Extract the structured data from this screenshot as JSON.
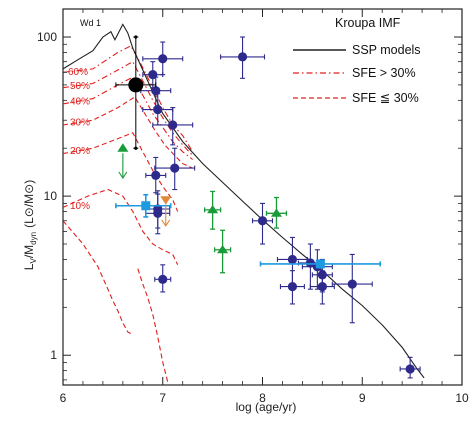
{
  "chart_data": {
    "type": "scatter",
    "xlabel": "log (age/yr)",
    "ylabel": "L_V/M_dyn (L_⊙/M_⊙)",
    "ylabel_parts": {
      "main": "L",
      "sub1": "V",
      "mid": "/M",
      "sub2": "dyn",
      "units": "(L⊙/M⊙)"
    },
    "xlim": [
      6,
      10
    ],
    "ylim": [
      0.65,
      150
    ],
    "yscale": "log",
    "x_ticks": [
      "6",
      "7",
      "8",
      "9",
      "10"
    ],
    "x_tick_values": [
      6,
      7,
      8,
      9,
      10
    ],
    "y_ticks": [
      "1",
      "10",
      "100"
    ],
    "y_tick_values": [
      1,
      10,
      100
    ],
    "legend": {
      "title": "Kroupa IMF",
      "entries": [
        {
          "label": "SSP models",
          "style": "solid",
          "color": "#222222"
        },
        {
          "label": "SFE > 30%",
          "style": "dashdot",
          "color": "#e0201e"
        },
        {
          "label": "SFE ≦ 30%",
          "style": "dashed",
          "color": "#e0201e"
        }
      ],
      "position": "top-right"
    },
    "annotations": {
      "object_label": "Wd 1"
    },
    "sfe_labels": [
      {
        "text": "60%",
        "x": 6.05,
        "y": 61
      },
      {
        "text": "50%",
        "x": 6.07,
        "y": 50
      },
      {
        "text": "40%",
        "x": 6.07,
        "y": 40
      },
      {
        "text": "30%",
        "x": 6.07,
        "y": 29.5
      },
      {
        "text": "20%",
        "x": 6.07,
        "y": 19.5
      },
      {
        "text": "10%",
        "x": 6.07,
        "y": 8.8
      }
    ],
    "ssp_curve": {
      "name": "SSP models",
      "points": [
        [
          6.0,
          63
        ],
        [
          6.15,
          72
        ],
        [
          6.3,
          82
        ],
        [
          6.4,
          100
        ],
        [
          6.48,
          108
        ],
        [
          6.52,
          96
        ],
        [
          6.6,
          120
        ],
        [
          6.65,
          106
        ],
        [
          6.7,
          85
        ],
        [
          6.8,
          62
        ],
        [
          6.9,
          45
        ],
        [
          7.0,
          33
        ],
        [
          7.1,
          27
        ],
        [
          7.2,
          22
        ],
        [
          7.4,
          16
        ],
        [
          7.6,
          12.2
        ],
        [
          7.8,
          9.3
        ],
        [
          8.0,
          7.1
        ],
        [
          8.2,
          5.5
        ],
        [
          8.4,
          4.3
        ],
        [
          8.6,
          3.4
        ],
        [
          8.8,
          2.6
        ],
        [
          9.0,
          2.05
        ],
        [
          9.2,
          1.55
        ],
        [
          9.4,
          1.12
        ],
        [
          9.55,
          0.82
        ],
        [
          9.62,
          0.72
        ]
      ]
    },
    "sfe_curves": [
      {
        "name": "SFE 60%",
        "style": "dashdot",
        "points": [
          [
            6.0,
            60
          ],
          [
            6.3,
            63
          ],
          [
            6.55,
            80
          ],
          [
            6.68,
            88
          ],
          [
            6.78,
            68
          ],
          [
            6.9,
            48
          ],
          [
            7.0,
            36
          ],
          [
            7.1,
            28
          ],
          [
            7.2,
            24
          ],
          [
            7.3,
            19
          ]
        ]
      },
      {
        "name": "SFE 50%",
        "style": "dashdot",
        "points": [
          [
            6.0,
            48
          ],
          [
            6.3,
            51
          ],
          [
            6.55,
            62
          ],
          [
            6.7,
            70
          ],
          [
            6.8,
            53
          ],
          [
            6.9,
            40
          ],
          [
            7.0,
            31
          ],
          [
            7.1,
            25
          ],
          [
            7.2,
            21
          ],
          [
            7.3,
            18
          ]
        ]
      },
      {
        "name": "SFE 40%",
        "style": "dashdot",
        "points": [
          [
            6.0,
            38
          ],
          [
            6.3,
            41
          ],
          [
            6.55,
            50
          ],
          [
            6.7,
            56
          ],
          [
            6.8,
            43
          ],
          [
            6.9,
            33
          ],
          [
            7.0,
            27
          ],
          [
            7.1,
            22
          ],
          [
            7.2,
            19
          ],
          [
            7.3,
            17
          ]
        ]
      },
      {
        "name": "SFE 30%",
        "style": "dashed",
        "points": [
          [
            6.0,
            28
          ],
          [
            6.3,
            30
          ],
          [
            6.55,
            36
          ],
          [
            6.72,
            42
          ],
          [
            6.82,
            33
          ],
          [
            6.92,
            26
          ],
          [
            7.02,
            21
          ],
          [
            7.12,
            18
          ],
          [
            7.2,
            16
          ],
          [
            7.3,
            15
          ]
        ]
      },
      {
        "name": "SFE 20%",
        "style": "dashed",
        "points": [
          [
            6.0,
            18.5
          ],
          [
            6.3,
            20
          ],
          [
            6.55,
            23
          ],
          [
            6.7,
            25
          ],
          [
            6.8,
            19
          ],
          [
            6.9,
            14.5
          ],
          [
            7.0,
            11.5
          ],
          [
            7.1,
            9.5
          ],
          [
            7.15,
            8
          ]
        ]
      },
      {
        "name": "SFE 10%",
        "style": "dashed",
        "points": [
          [
            6.0,
            8.5
          ],
          [
            6.25,
            10
          ],
          [
            6.45,
            11
          ],
          [
            6.6,
            10
          ],
          [
            6.7,
            8
          ],
          [
            6.8,
            6
          ],
          [
            6.9,
            5
          ],
          [
            7.0,
            4.6
          ],
          [
            7.1,
            4.3
          ],
          [
            7.15,
            3.7
          ]
        ]
      },
      {
        "name": "SFE 10% low",
        "style": "dashed",
        "points": [
          [
            6.0,
            7
          ],
          [
            6.2,
            5
          ],
          [
            6.35,
            3.6
          ],
          [
            6.45,
            2.6
          ],
          [
            6.5,
            2.2
          ],
          [
            6.55,
            1.9
          ],
          [
            6.6,
            1.6
          ],
          [
            6.65,
            1.4
          ],
          [
            6.7,
            1.35
          ]
        ]
      },
      {
        "name": "SFE 5%",
        "style": "dashed",
        "points": [
          [
            6.75,
            3.5
          ],
          [
            6.8,
            2.8
          ],
          [
            6.85,
            2.3
          ],
          [
            6.9,
            1.8
          ],
          [
            6.95,
            1.3
          ],
          [
            7.0,
            0.9
          ],
          [
            7.05,
            0.68
          ]
        ]
      }
    ],
    "series": [
      {
        "name": "clusters",
        "marker": "circle",
        "color": "#2e2a8c",
        "points": [
          {
            "x": 6.9,
            "y": 58,
            "xerr": 0.1,
            "yerr_up": 12,
            "yerr_dn": 10
          },
          {
            "x": 7.0,
            "y": 73,
            "xerr": 0.2,
            "yerr_up": 20,
            "yerr_dn": 15
          },
          {
            "x": 6.93,
            "y": 46,
            "xerr": 0.15,
            "yerr_up": 10,
            "yerr_dn": 10
          },
          {
            "x": 6.95,
            "y": 35,
            "xerr": 0.15,
            "yerr_up": 9,
            "yerr_dn": 7
          },
          {
            "x": 7.1,
            "y": 28,
            "xerr": 0.2,
            "yerr_up": 8,
            "yerr_dn": 7
          },
          {
            "x": 7.12,
            "y": 15,
            "xerr": 0.2,
            "yerr_up": 5,
            "yerr_dn": 4
          },
          {
            "x": 6.93,
            "y": 13.5,
            "xerr": 0.1,
            "yerr_up": 4,
            "yerr_dn": 3
          },
          {
            "x": 6.95,
            "y": 8.3,
            "xerr": 0.12,
            "yerr_up": 2.5,
            "yerr_dn": 2
          },
          {
            "x": 6.95,
            "y": 7.8,
            "xerr": 0.12,
            "yerr_up": 2.5,
            "yerr_dn": 2
          },
          {
            "x": 7.0,
            "y": 3.0,
            "xerr": 0.08,
            "yerr_up": 0.7,
            "yerr_dn": 0.5
          },
          {
            "x": 7.8,
            "y": 75,
            "xerr": 0.22,
            "yerr_up": 25,
            "yerr_dn": 20
          },
          {
            "x": 8.0,
            "y": 7,
            "xerr": 0.1,
            "yerr_up": 2,
            "yerr_dn": 2
          },
          {
            "x": 8.3,
            "y": 4.0,
            "xerr": 0.15,
            "yerr_up": 1.5,
            "yerr_dn": 1.2
          },
          {
            "x": 8.3,
            "y": 2.7,
            "xerr": 0.12,
            "yerr_up": 0.7,
            "yerr_dn": 0.6
          },
          {
            "x": 8.48,
            "y": 3.8,
            "xerr": 0.12,
            "yerr_up": 1.2,
            "yerr_dn": 1.2
          },
          {
            "x": 8.55,
            "y": 3.6,
            "xerr": 0.15,
            "yerr_up": 1.0,
            "yerr_dn": 1.0
          },
          {
            "x": 8.6,
            "y": 3.2,
            "xerr": 0.1,
            "yerr_up": 0.8,
            "yerr_dn": 0.7
          },
          {
            "x": 8.6,
            "y": 2.7,
            "xerr": 0.12,
            "yerr_up": 0.7,
            "yerr_dn": 0.6
          },
          {
            "x": 8.9,
            "y": 2.8,
            "xerr": 0.2,
            "yerr_up": 1.5,
            "yerr_dn": 1.2
          },
          {
            "x": 9.48,
            "y": 0.82,
            "xerr": 0.1,
            "yerr_up": 0.15,
            "yerr_dn": 0.1
          }
        ]
      },
      {
        "name": "clusters (triangles)",
        "marker": "triangle",
        "color": "#1b9a3a",
        "points": [
          {
            "x": 7.5,
            "y": 8.2,
            "xerr": 0.08,
            "yerr_up": 2.5,
            "yerr_dn": 2
          },
          {
            "x": 7.6,
            "y": 4.6,
            "xerr": 0.08,
            "yerr_up": 1.5,
            "yerr_dn": 1.3
          },
          {
            "x": 8.14,
            "y": 7.8,
            "xerr": 0.1,
            "yerr_up": 2,
            "yerr_dn": 1.5
          }
        ]
      },
      {
        "name": "clusters (squares)",
        "marker": "square",
        "color": "#1e9ae0",
        "points": [
          {
            "x": 6.83,
            "y": 8.7,
            "xerr_lo": 0.3,
            "xerr_hi": 0.25,
            "yerr_up": 1.5,
            "yerr_dn": 1.3
          },
          {
            "x": 8.58,
            "y": 3.75,
            "xerr_lo": 0.6,
            "xerr_hi": 0.6,
            "yerr_up": 0.2,
            "yerr_dn": 0.2
          }
        ]
      },
      {
        "name": "Wd 1",
        "marker": "big-circle",
        "color": "#000000",
        "points": [
          {
            "x": 6.73,
            "y": 50,
            "xerr": 0.2,
            "yerr_up": 50,
            "yerr_dn": 30
          }
        ]
      }
    ],
    "limit_markers": [
      {
        "x": 6.6,
        "y": 20,
        "marker": "triangle-up",
        "color": "#1b9a3a",
        "arrow": "down",
        "arrow_to": 13
      },
      {
        "x": 7.03,
        "y": 9.5,
        "marker": "triangle-down",
        "color": "#e08a3a",
        "arrow": "down",
        "arrow_to": 6.5
      }
    ]
  }
}
